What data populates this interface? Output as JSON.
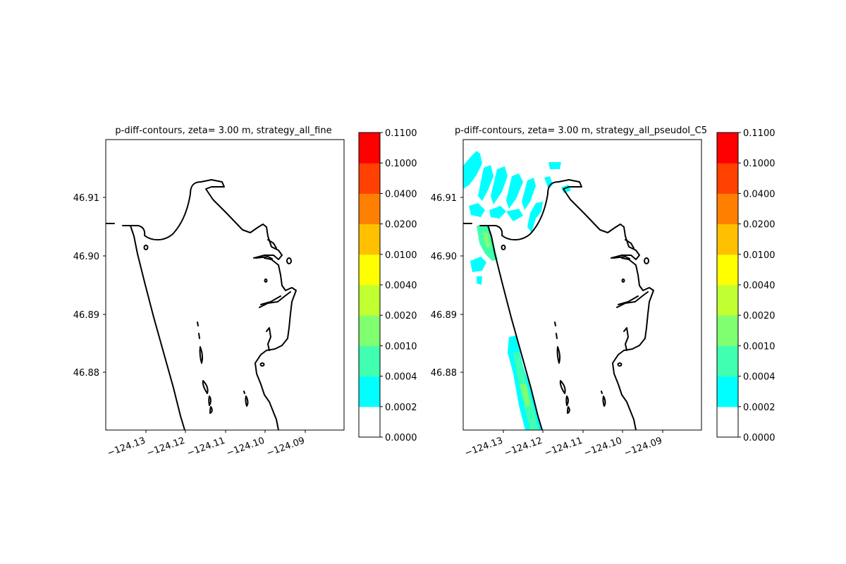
{
  "figure": {
    "panels": [
      {
        "title": "p-diff-contours, zeta= 3.00 m, strategy_all_fine",
        "has_fill": false
      },
      {
        "title": "p-diff-contours, zeta= 3.00 m, strategy_all_pseudoI_C5",
        "has_fill": true
      }
    ],
    "x_ticks": [
      "−124.13",
      "−124.12",
      "−124.11",
      "−124.10",
      "−124.09"
    ],
    "y_ticks": [
      "46.91",
      "46.90",
      "46.89",
      "46.88"
    ],
    "colorbar": {
      "levels": [
        "0.0000",
        "0.0002",
        "0.0004",
        "0.0010",
        "0.0020",
        "0.0040",
        "0.0100",
        "0.0200",
        "0.0400",
        "0.1000",
        "0.1100"
      ],
      "colors": [
        "#ffffff",
        "#00ffff",
        "#40ffb0",
        "#80ff70",
        "#c0ff30",
        "#ffff00",
        "#ffc000",
        "#ff8000",
        "#ff4000",
        "#ff0000"
      ]
    },
    "colors": {
      "coastline": "#000000",
      "fill_cyan": "#00ffff",
      "fill_teal": "#40ffb0",
      "fill_green": "#80ff70"
    }
  }
}
